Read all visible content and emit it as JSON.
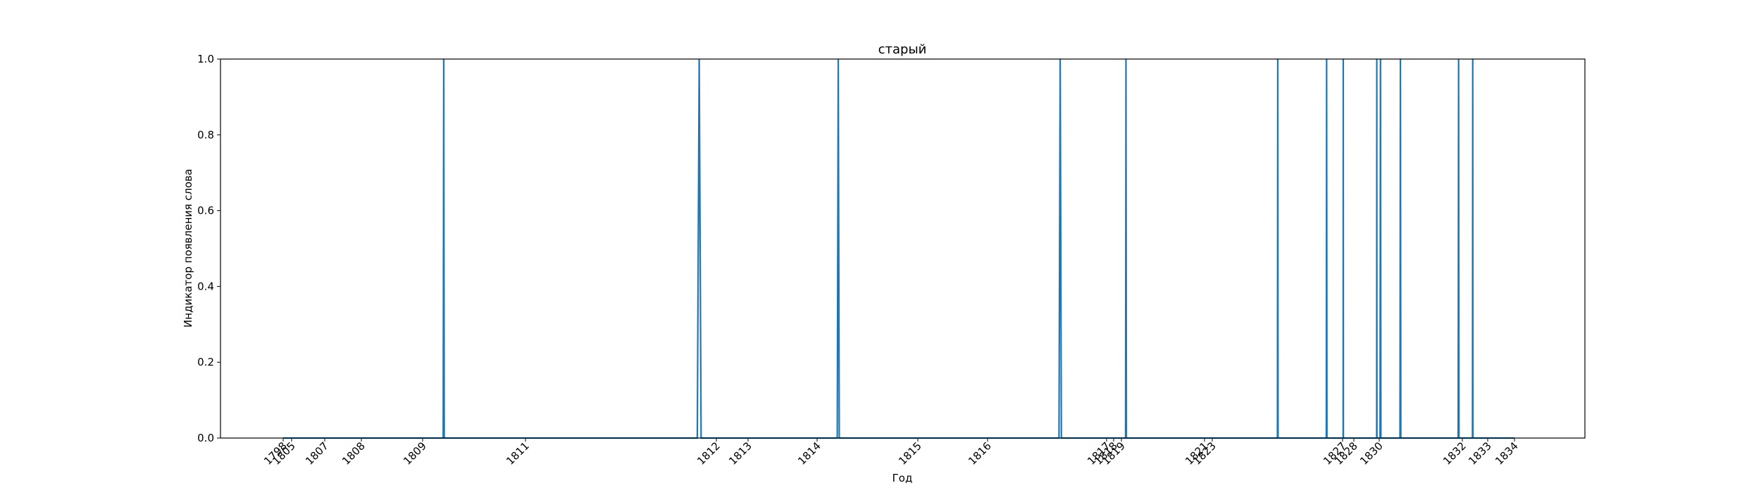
{
  "chart_data": {
    "type": "line",
    "title": "старый",
    "xlabel": "Год",
    "ylabel": "Индикатор появления слова",
    "ylim": [
      0,
      1
    ],
    "yticks": [
      "0.0",
      "0.2",
      "0.4",
      "0.6",
      "0.8",
      "1.0"
    ],
    "grid": false,
    "legend": "none",
    "series_color": "#1f77b4",
    "xticks": [
      {
        "x": 1798.0,
        "label": "1798"
      },
      {
        "x": 1805.0,
        "label": "1805"
      },
      {
        "x": 1807.0,
        "label": "1807"
      },
      {
        "x": 1808.0,
        "label": "1808"
      },
      {
        "x": 1809.0,
        "label": "1809"
      },
      {
        "x": 1811.0,
        "label": "1811"
      },
      {
        "x": 1812.0,
        "label": "1812"
      },
      {
        "x": 1813.0,
        "label": "1813"
      },
      {
        "x": 1814.0,
        "label": "1814"
      },
      {
        "x": 1815.0,
        "label": "1815"
      },
      {
        "x": 1816.0,
        "label": "1816"
      },
      {
        "x": 1817.0,
        "label": "1817"
      },
      {
        "x": 1818.0,
        "label": "1818"
      },
      {
        "x": 1819.0,
        "label": "1819"
      },
      {
        "x": 1821.0,
        "label": "1821"
      },
      {
        "x": 1823.0,
        "label": "1823"
      },
      {
        "x": 1827.0,
        "label": "1827"
      },
      {
        "x": 1828.0,
        "label": "1828"
      },
      {
        "x": 1830.0,
        "label": "1830"
      },
      {
        "x": 1832.0,
        "label": "1832"
      },
      {
        "x": 1833.0,
        "label": "1833"
      },
      {
        "x": 1834.0,
        "label": "1834"
      }
    ],
    "x": [
      1798.0,
      1805.0,
      1807.0,
      1808.0,
      1809.0,
      1809.4,
      1809.41,
      1809.42,
      1811.0,
      1811.9,
      1811.91,
      1811.92,
      1812.0,
      1813.0,
      1814.0,
      1814.2,
      1814.21,
      1814.22,
      1815.0,
      1816.0,
      1816.6,
      1816.61,
      1816.62,
      1817.0,
      1818.0,
      1819.0,
      1819.1,
      1819.11,
      1819.12,
      1821.0,
      1823.0,
      1825.0,
      1825.01,
      1825.02,
      1826.5,
      1826.51,
      1826.52,
      1827.0,
      1827.05,
      1827.06,
      1827.07,
      1828.0,
      1829.0,
      1829.8,
      1829.81,
      1829.82,
      1830.0,
      1830.02,
      1830.03,
      1830.04,
      1830.5,
      1830.51,
      1830.52,
      1831.9,
      1831.91,
      1831.92,
      1832.0,
      1832.4,
      1832.41,
      1832.42,
      1833.0,
      1834.0
    ],
    "series": [
      {
        "values": [
          0,
          0,
          0,
          0,
          0,
          0,
          1,
          0,
          0,
          0,
          1,
          0,
          0,
          0,
          0,
          0,
          1,
          0,
          0,
          0,
          0,
          1,
          0,
          0,
          0,
          0,
          0,
          1,
          0,
          0,
          0,
          0,
          1,
          0,
          0,
          1,
          0,
          0,
          0,
          1,
          0,
          0,
          0,
          0,
          1,
          0,
          0,
          0,
          1,
          0,
          0,
          1,
          0,
          0,
          1,
          0,
          0,
          0,
          1,
          0,
          0,
          0
        ]
      }
    ]
  }
}
